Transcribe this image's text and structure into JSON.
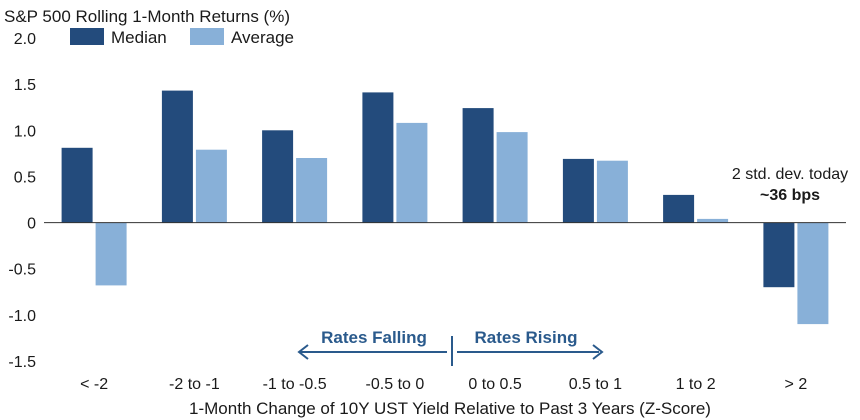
{
  "chart_data": {
    "type": "bar",
    "title": "S&P 500 Rolling 1-Month Returns (%)",
    "xlabel": "1-Month Change of 10Y UST Yield Relative to Past 3 Years (Z-Score)",
    "ylabel": "",
    "ylim": [
      -1.5,
      2.0
    ],
    "yticks": [
      "2.0",
      "1.5",
      "1.0",
      "0.5",
      "0",
      "-0.5",
      "-1.0",
      "-1.5"
    ],
    "ytick_values": [
      2.0,
      1.5,
      1.0,
      0.5,
      0,
      -0.5,
      -1.0,
      -1.5
    ],
    "categories": [
      "< -2",
      "-2 to -1",
      "-1 to -0.5",
      "-0.5 to 0",
      "0 to 0.5",
      "0.5 to 1",
      "1 to 2",
      "> 2"
    ],
    "series": [
      {
        "name": "Median",
        "color": "#234b7c",
        "values": [
          0.81,
          1.43,
          1.0,
          1.41,
          1.24,
          0.69,
          0.3,
          -0.7
        ]
      },
      {
        "name": "Average",
        "color": "#88b0d8",
        "values": [
          -0.68,
          0.79,
          0.7,
          1.08,
          0.98,
          0.67,
          0.04,
          -1.1
        ]
      }
    ],
    "grid": false,
    "legend": "top-left",
    "annotations": {
      "today_line1": "2 std. dev. today",
      "today_line2": "~36 bps",
      "rates_falling": "Rates Falling",
      "rates_rising": "Rates Rising",
      "arrow_color": "#2a5a8c"
    }
  }
}
